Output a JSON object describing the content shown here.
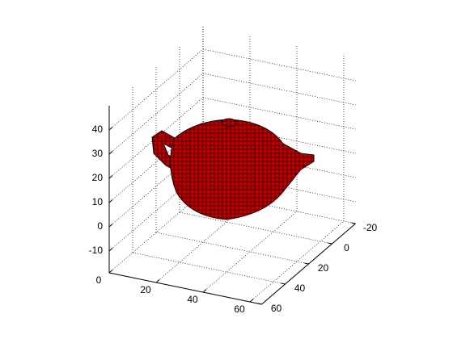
{
  "chart_data": {
    "type": "voxel3d",
    "xlim": [
      0,
      65
    ],
    "ylim": [
      -20,
      60
    ],
    "zlim": [
      -19,
      50
    ],
    "xticks": [
      0,
      20,
      40,
      60
    ],
    "yticks": [
      -20,
      0,
      20,
      40,
      60
    ],
    "zticks": [
      -10,
      0,
      10,
      20,
      30,
      40
    ],
    "grid": true,
    "color": "#c00000"
  }
}
